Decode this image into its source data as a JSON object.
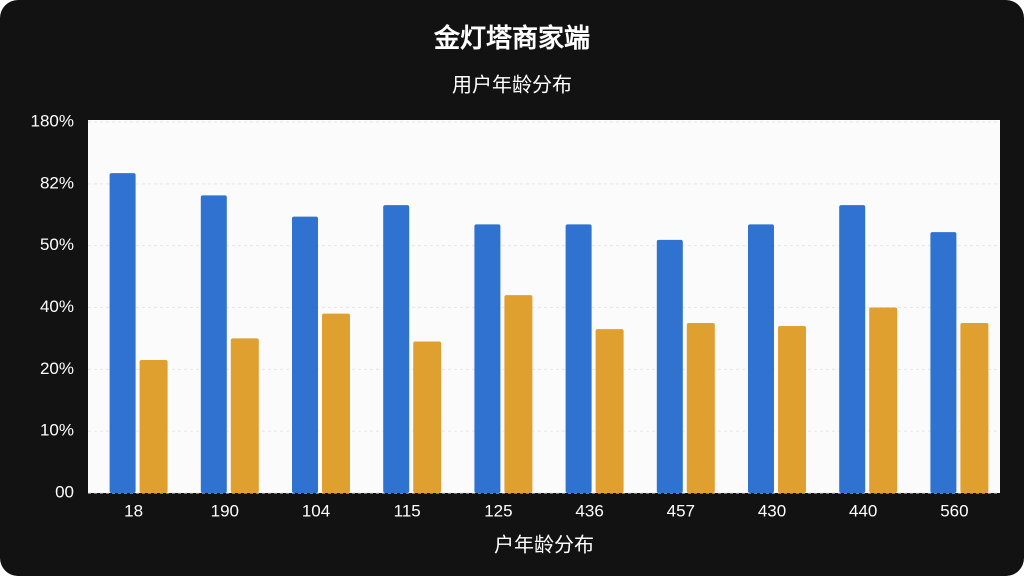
{
  "chart_data": {
    "type": "bar",
    "title": "金灯塔商家端",
    "subtitle": "用户年龄分布",
    "x_label": "户年龄分布",
    "categories": [
      "18",
      "190",
      "104",
      "115",
      "125",
      "436",
      "457",
      "430",
      "440",
      "560"
    ],
    "series": [
      {
        "color": "#2f72d0",
        "values": [
          99,
          76,
          65,
          71,
          61,
          61,
          53,
          61,
          71,
          57
        ]
      },
      {
        "color": "#e0a030",
        "values": [
          23,
          30,
          38,
          29,
          42,
          33,
          35,
          34,
          40,
          35
        ]
      }
    ],
    "ylim": [
      0,
      180
    ],
    "yticks": [
      {
        "value": 0,
        "label": "00"
      },
      {
        "value": 10,
        "label": "10%"
      },
      {
        "value": 20,
        "label": "20%"
      },
      {
        "value": 40,
        "label": "40%"
      },
      {
        "value": 50,
        "label": "50%"
      },
      {
        "value": 82,
        "label": "82%"
      },
      {
        "value": 180,
        "label": "180%"
      }
    ],
    "grid": true
  }
}
